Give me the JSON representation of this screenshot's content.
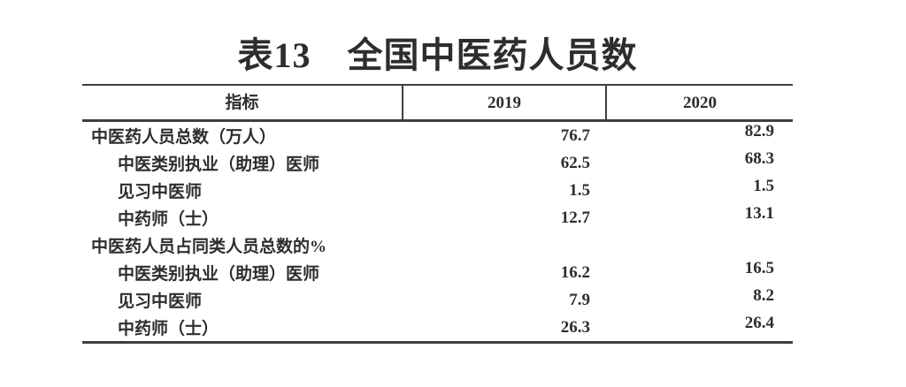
{
  "page": {
    "background": "#ffffff",
    "text_color": "#2d2d2d",
    "border_color": "#3e3e3e"
  },
  "table": {
    "title": "表13　全国中医药人员数",
    "header": {
      "indicator": "指标",
      "year1": "2019",
      "year2": "2020"
    },
    "rows": [
      {
        "label": "中医药人员总数（万人）",
        "indent": 0,
        "v2019": "76.7",
        "v2020": "82.9"
      },
      {
        "label": "中医类别执业（助理）医师",
        "indent": 1,
        "v2019": "62.5",
        "v2020": "68.3"
      },
      {
        "label": "见习中医师",
        "indent": 1,
        "v2019": "1.5",
        "v2020": "1.5"
      },
      {
        "label": "中药师（士）",
        "indent": 1,
        "v2019": "12.7",
        "v2020": "13.1"
      },
      {
        "label": "中医药人员占同类人员总数的%",
        "indent": 0,
        "v2019": "",
        "v2020": ""
      },
      {
        "label": "中医类别执业（助理）医师",
        "indent": 1,
        "v2019": "16.2",
        "v2020": "16.5"
      },
      {
        "label": "见习中医师",
        "indent": 1,
        "v2019": "7.9",
        "v2020": "8.2"
      },
      {
        "label": "中药师（士）",
        "indent": 1,
        "v2019": "26.3",
        "v2020": "26.4"
      }
    ]
  },
  "chart_data": {
    "type": "table",
    "title": "表13　全国中医药人员数",
    "columns": [
      "指标",
      "2019",
      "2020"
    ],
    "cells": [
      [
        "中医药人员总数（万人）",
        76.7,
        82.9
      ],
      [
        "中医类别执业（助理）医师",
        62.5,
        68.3
      ],
      [
        "见习中医师",
        1.5,
        1.5
      ],
      [
        "中药师（士）",
        12.7,
        13.1
      ],
      [
        "中医药人员占同类人员总数的%",
        null,
        null
      ],
      [
        "中医类别执业（助理）医师",
        16.2,
        16.5
      ],
      [
        "见习中医师",
        7.9,
        8.2
      ],
      [
        "中药师（士）",
        26.3,
        26.4
      ]
    ]
  }
}
